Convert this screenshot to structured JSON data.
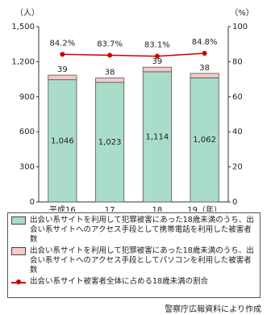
{
  "chart_data": {
    "type": "bar",
    "stacked": true,
    "y_unit": "（人）",
    "y2_unit": "（%）",
    "categories": [
      "平成16",
      "17",
      "18",
      "19（年）"
    ],
    "series": [
      {
        "name": "出会い系サイトを利用して犯罪被害にあった18歳未満のうち、出会い系サイトへのアクセス手段として携帯電話を利用した被害者数",
        "color": "#a9dcc9",
        "values": [
          1046,
          1023,
          1114,
          1062
        ],
        "value_labels": [
          "1,046",
          "1,023",
          "1,114",
          "1,062"
        ]
      },
      {
        "name": "出会い系サイトを利用して犯罪被害にあった18歳未満のうち、出会い系サイトへのアクセス手段としてパソコンを利用した被害者数",
        "color": "#f5c9c9",
        "values": [
          39,
          38,
          39,
          38
        ]
      },
      {
        "name": "出会い系サイト被害者全体に占める18歳未満の割合",
        "color": "#cc0000",
        "type": "line",
        "axis": "y2",
        "values": [
          84.2,
          83.7,
          83.1,
          84.8
        ],
        "value_labels": [
          "84.2%",
          "83.7%",
          "83.1%",
          "84.8%"
        ]
      }
    ],
    "ylim": [
      0,
      1500
    ],
    "yticks": [
      0,
      300,
      600,
      900,
      {
        "value": 1200,
        "label": "1,200"
      },
      {
        "value": 1500,
        "label": "1,500"
      }
    ],
    "y2lim": [
      0,
      100
    ],
    "y2ticks": [
      0,
      20,
      40,
      60,
      80,
      100
    ],
    "source": "警察庁広報資料により作成"
  }
}
